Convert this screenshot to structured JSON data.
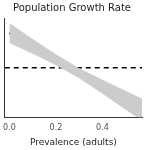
{
  "chart_data": {
    "type": "line",
    "title": "Population Growth Rate",
    "x_label": "Prevalence (adults)",
    "x": [
      0,
      0.1,
      0.2,
      0.3,
      0.4,
      0.5,
      0.57
    ],
    "values": [
      1.07,
      1.043,
      1.016,
      0.989,
      0.962,
      0.935,
      0.916
    ],
    "ci_lower": [
      1.05,
      1.028,
      1.005,
      0.979,
      0.948,
      0.916,
      0.894
    ],
    "ci_upper": [
      1.09,
      1.058,
      1.027,
      0.999,
      0.976,
      0.954,
      0.938
    ],
    "color": "#000000",
    "reference_line": {
      "value": 1.0,
      "line_style": "dashed"
    },
    "xlim": [
      -0.02,
      0.57
    ],
    "xticks": [
      {
        "value": 0,
        "label": "0.0"
      },
      0.2,
      0.4
    ],
    "ylim": [
      0.9,
      1.1
    ],
    "grid": false,
    "tick_labels": "x"
  }
}
